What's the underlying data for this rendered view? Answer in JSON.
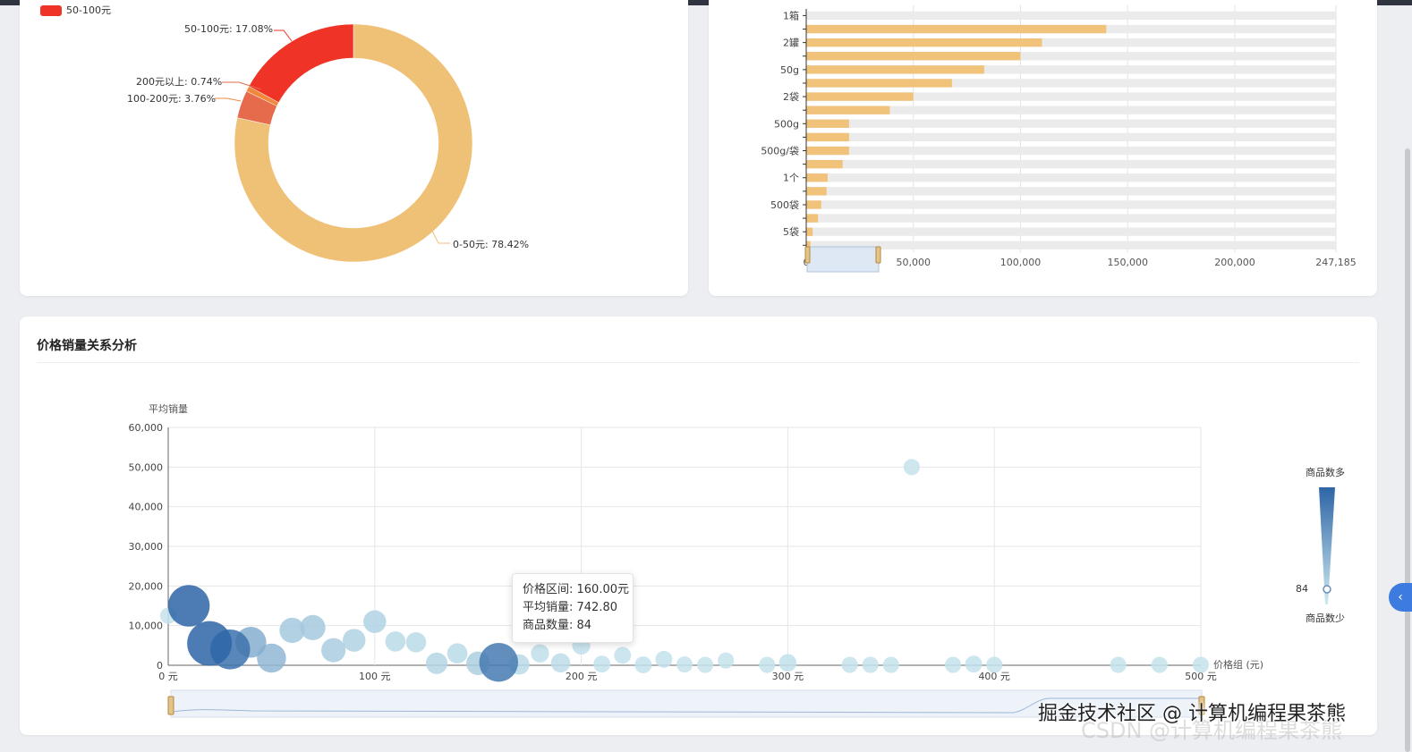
{
  "colors": {
    "pie": [
      "#efc177",
      "#ef3326",
      "#f1883c",
      "#e66a4c"
    ],
    "bar": "#f0c27a",
    "bar_bg": "#ebebeb",
    "bubble_dark": "#2d65a6",
    "bubble_light": "#cdeaf0",
    "accent": "#3d7be0"
  },
  "pie_card": {
    "legend_label": "50-100元",
    "labels": {
      "a": "0-50元: 78.42%",
      "b": "50-100元: 17.08%",
      "c": "200元以上: 0.74%",
      "d": "100-200元: 3.76%"
    }
  },
  "bar_card": {
    "x_ticks": [
      "0",
      "50,000",
      "100,000",
      "150,000",
      "200,000",
      "247,185"
    ],
    "y_labels": [
      "1箱",
      "2罐",
      "50g",
      "2袋",
      "500g",
      "500g/袋",
      "1个",
      "500袋",
      "5袋"
    ]
  },
  "scatter_card": {
    "title": "价格销量关系分析",
    "y_axis_name": "平均销量",
    "x_axis_name": "价格组 (元)",
    "y_ticks": [
      "0",
      "10,000",
      "20,000",
      "30,000",
      "40,000",
      "50,000",
      "60,000"
    ],
    "x_ticks": [
      "0 元",
      "100 元",
      "200 元",
      "300 元",
      "400 元",
      "500 元"
    ],
    "visualmap": {
      "high": "商品数多",
      "low": "商品数少",
      "value": "84"
    },
    "tooltip": {
      "line1": "价格区间: 160.00元",
      "line2": "平均销量: 742.80",
      "line3": "商品数量: 84"
    }
  },
  "watermark": {
    "text": "掘金技术社区 @ 计算机编程果茶熊",
    "sub": "CSDN @计算机编程果茶熊"
  },
  "chart_data": [
    {
      "type": "pie",
      "title": "",
      "slices": [
        {
          "name": "0-50元",
          "value": 78.42
        },
        {
          "name": "50-100元",
          "value": 17.08
        },
        {
          "name": "200元以上",
          "value": 0.74
        },
        {
          "name": "100-200元",
          "value": 3.76
        }
      ]
    },
    {
      "type": "bar",
      "orientation": "horizontal",
      "categories": [
        "1箱",
        "",
        "2罐",
        "",
        "50g",
        "",
        "2袋",
        "",
        "500g",
        "",
        "500g/袋",
        "",
        "1个",
        "",
        "500袋",
        "",
        "5袋",
        ""
      ],
      "values": [
        null,
        140000,
        110000,
        100000,
        83000,
        68000,
        50000,
        39000,
        20000,
        20000,
        20000,
        17000,
        10000,
        9500,
        7000,
        5500,
        3000,
        2000
      ],
      "xlim": [
        0,
        247185
      ]
    },
    {
      "type": "scatter",
      "xlabel": "价格组 (元)",
      "ylabel": "平均销量",
      "xlim": [
        0,
        500
      ],
      "ylim": [
        0,
        60000
      ],
      "points": [
        {
          "x": 0,
          "y": 12500,
          "n": 5
        },
        {
          "x": 10,
          "y": 15000,
          "n": 100
        },
        {
          "x": 20,
          "y": 5500,
          "n": 120
        },
        {
          "x": 30,
          "y": 4000,
          "n": 90
        },
        {
          "x": 40,
          "y": 5800,
          "n": 45
        },
        {
          "x": 50,
          "y": 1800,
          "n": 38
        },
        {
          "x": 60,
          "y": 8800,
          "n": 25
        },
        {
          "x": 70,
          "y": 9500,
          "n": 25
        },
        {
          "x": 80,
          "y": 3800,
          "n": 22
        },
        {
          "x": 90,
          "y": 6300,
          "n": 18
        },
        {
          "x": 100,
          "y": 11000,
          "n": 18
        },
        {
          "x": 110,
          "y": 6000,
          "n": 12
        },
        {
          "x": 120,
          "y": 5800,
          "n": 12
        },
        {
          "x": 130,
          "y": 500,
          "n": 15
        },
        {
          "x": 140,
          "y": 3000,
          "n": 12
        },
        {
          "x": 150,
          "y": 500,
          "n": 20
        },
        {
          "x": 160,
          "y": 742.8,
          "n": 84
        },
        {
          "x": 170,
          "y": 200,
          "n": 12
        },
        {
          "x": 180,
          "y": 3000,
          "n": 8
        },
        {
          "x": 190,
          "y": 600,
          "n": 10
        },
        {
          "x": 200,
          "y": 5000,
          "n": 8
        },
        {
          "x": 210,
          "y": 300,
          "n": 6
        },
        {
          "x": 220,
          "y": 2500,
          "n": 6
        },
        {
          "x": 230,
          "y": 100,
          "n": 6
        },
        {
          "x": 240,
          "y": 1500,
          "n": 6
        },
        {
          "x": 250,
          "y": 200,
          "n": 5
        },
        {
          "x": 260,
          "y": 100,
          "n": 5
        },
        {
          "x": 270,
          "y": 1200,
          "n": 5
        },
        {
          "x": 290,
          "y": 100,
          "n": 5
        },
        {
          "x": 300,
          "y": 600,
          "n": 7
        },
        {
          "x": 330,
          "y": 100,
          "n": 5
        },
        {
          "x": 340,
          "y": 100,
          "n": 5
        },
        {
          "x": 350,
          "y": 100,
          "n": 5
        },
        {
          "x": 360,
          "y": 50000,
          "n": 5
        },
        {
          "x": 380,
          "y": 100,
          "n": 5
        },
        {
          "x": 390,
          "y": 300,
          "n": 6
        },
        {
          "x": 400,
          "y": 100,
          "n": 5
        },
        {
          "x": 460,
          "y": 100,
          "n": 5
        },
        {
          "x": 480,
          "y": 100,
          "n": 5
        },
        {
          "x": 500,
          "y": 100,
          "n": 5
        }
      ]
    }
  ]
}
